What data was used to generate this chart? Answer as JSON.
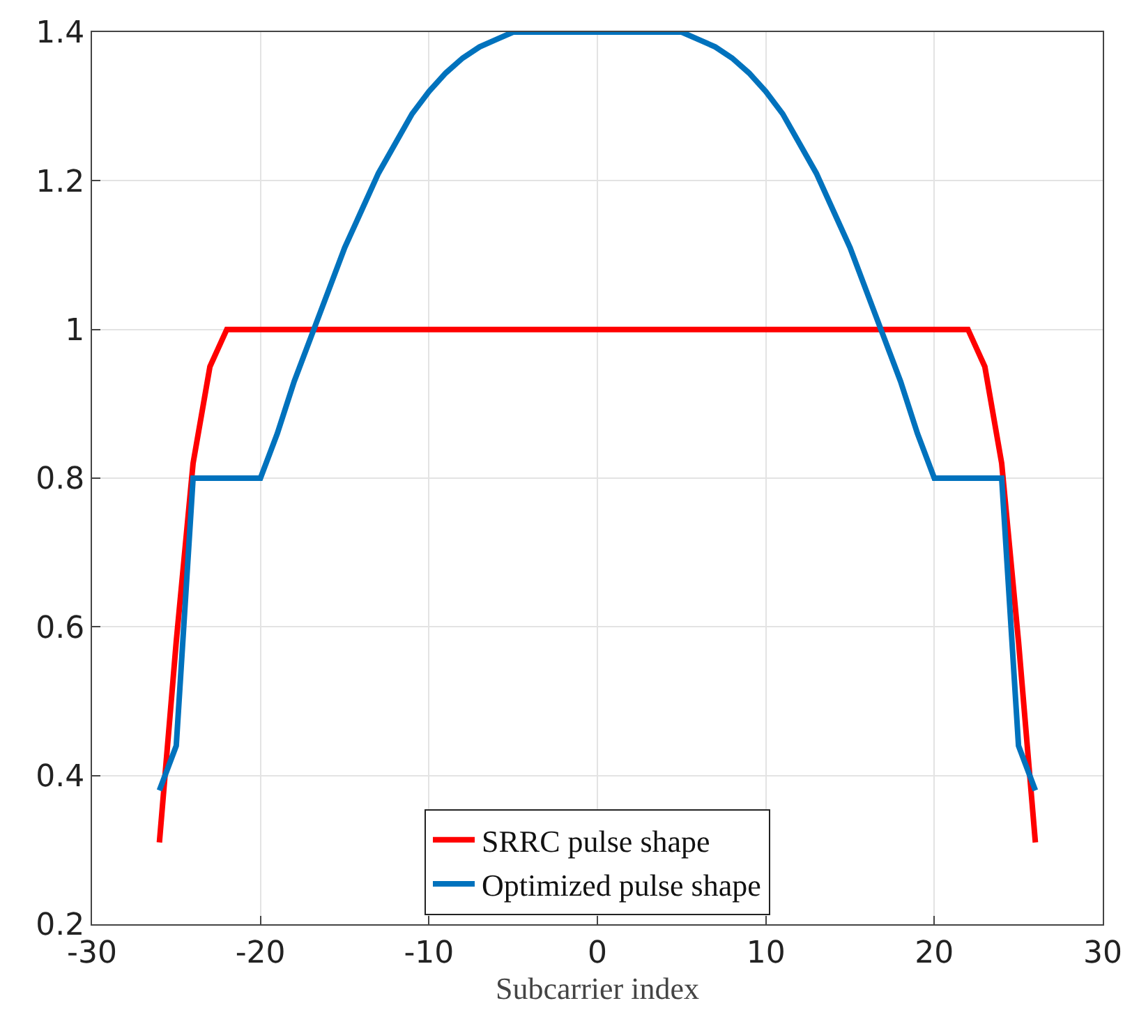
{
  "chart_data": {
    "type": "line",
    "xlabel": "Subcarrier index",
    "series": [
      {
        "name": "SRRC pulse shape",
        "color": "#ff0000",
        "x": [
          -26,
          -25,
          -24,
          -23,
          -22,
          22,
          23,
          24,
          25,
          26
        ],
        "values": [
          0.31,
          0.58,
          0.82,
          0.95,
          1.0,
          1.0,
          0.95,
          0.82,
          0.58,
          0.31
        ]
      },
      {
        "name": "Optimized pulse shape",
        "color": "#0072bd",
        "x": [
          -26,
          -25,
          -24,
          -20,
          -19,
          -18,
          -17,
          -16,
          -15,
          -14,
          -13,
          -12,
          -11,
          -10,
          -9,
          -8,
          -7,
          -6,
          -5,
          -4,
          0,
          4,
          5,
          6,
          7,
          8,
          9,
          10,
          11,
          12,
          13,
          14,
          15,
          16,
          17,
          18,
          19,
          20,
          24,
          25,
          26
        ],
        "values": [
          0.38,
          0.44,
          0.8,
          0.8,
          0.86,
          0.93,
          0.99,
          1.05,
          1.11,
          1.16,
          1.21,
          1.25,
          1.29,
          1.32,
          1.345,
          1.365,
          1.38,
          1.39,
          1.4,
          1.4,
          1.4,
          1.4,
          1.4,
          1.39,
          1.38,
          1.365,
          1.345,
          1.32,
          1.29,
          1.25,
          1.21,
          1.16,
          1.11,
          1.05,
          0.99,
          0.93,
          0.86,
          0.8,
          0.8,
          0.44,
          0.38
        ]
      }
    ],
    "xlim": [
      -30,
      30
    ],
    "xticks": [
      -30,
      -20,
      -10,
      0,
      10,
      20,
      30
    ],
    "ylim": [
      0.2,
      1.4
    ],
    "yticks": [
      0.2,
      0.4,
      0.6,
      0.8,
      1,
      1.2,
      1.4
    ],
    "grid": true,
    "legend": "bottom",
    "marker": "none",
    "line_style": "solid"
  }
}
